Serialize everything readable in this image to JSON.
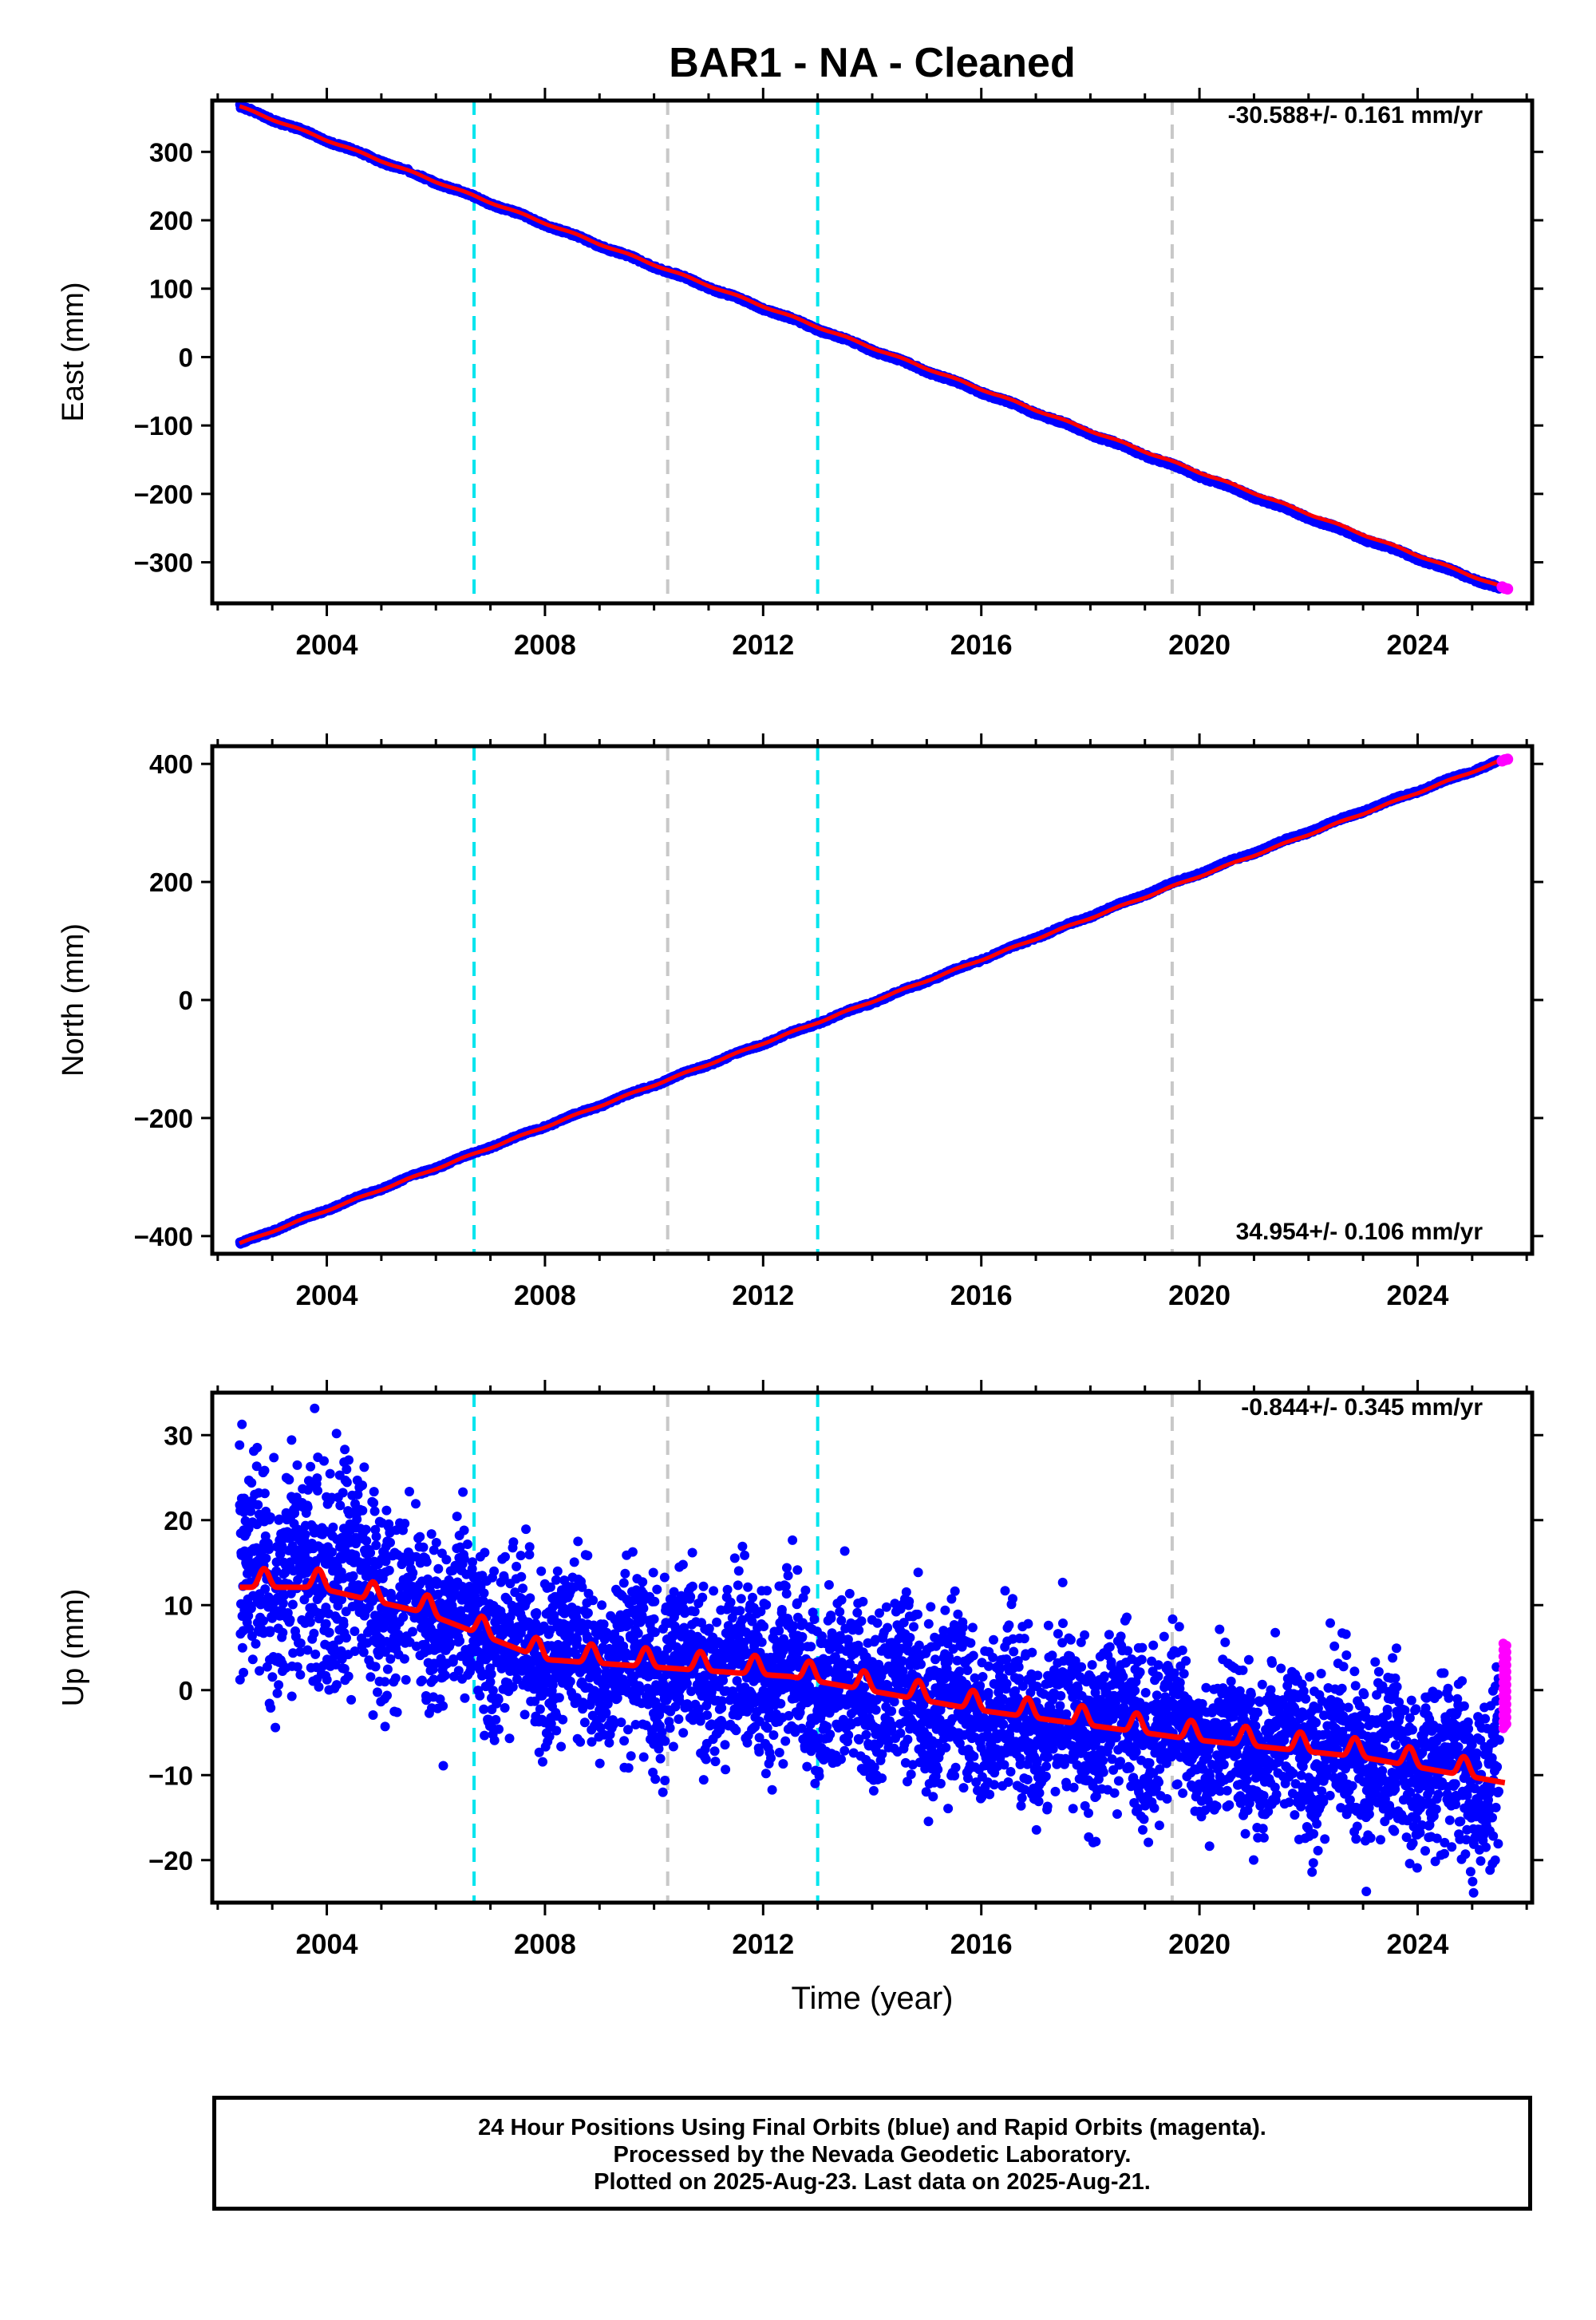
{
  "title": "BAR1  - NA - Cleaned",
  "footer": {
    "line1": "24 Hour Positions Using Final Orbits (blue) and Rapid Orbits (magenta).",
    "line2": "Processed by the Nevada Geodetic Laboratory.",
    "line3": "Plotted on 2025-Aug-23. Last data on 2025-Aug-21."
  },
  "colors": {
    "final_orbits": "#0000ff",
    "rapid_orbits": "#ff00ff",
    "model": "#ff0000",
    "event_cyan": "#00e5ee",
    "event_gray": "#c8c8c8"
  },
  "chart_data": [
    {
      "type": "scatter",
      "ylabel": "East (mm)",
      "rate_text": "-30.588+/- 0.161 mm/yr",
      "xlim": [
        2001.9,
        2026.1
      ],
      "ylim": [
        -360,
        375
      ],
      "xticks": [
        2004,
        2008,
        2012,
        2016,
        2020,
        2024
      ],
      "yticks": [
        -300,
        -200,
        -100,
        0,
        100,
        200,
        300
      ],
      "grid": false,
      "events_cyan": [
        2006.7,
        2013.0
      ],
      "events_gray": [
        2010.25,
        2019.5
      ],
      "series": [
        {
          "color": "blue",
          "x": [
            2002.4,
            2005.4,
            2009.6,
            2014.6,
            2019.3,
            2023.0,
            2025.5
          ],
          "y": [
            366,
            274,
            145,
            -8,
            -152,
            -265,
            -338
          ]
        },
        {
          "color": "magenta",
          "x": [
            2025.55,
            2025.6,
            2025.65
          ],
          "y": [
            -336,
            -338,
            -339
          ]
        },
        {
          "color": "red",
          "x": [
            2002.4,
            2025.6
          ],
          "y": [
            366,
            -338
          ]
        }
      ]
    },
    {
      "type": "scatter",
      "ylabel": "North (mm)",
      "rate_text": "34.954+/- 0.106 mm/yr",
      "xlim": [
        2001.9,
        2026.1
      ],
      "ylim": [
        -430,
        430
      ],
      "xticks": [
        2004,
        2008,
        2012,
        2016,
        2020,
        2024
      ],
      "yticks": [
        -400,
        -200,
        0,
        200,
        400
      ],
      "grid": false,
      "events_cyan": [
        2006.7,
        2013.0
      ],
      "events_gray": [
        2010.25,
        2019.5
      ],
      "series": [
        {
          "color": "blue",
          "x": [
            2002.4,
            2005.4,
            2009.6,
            2014.6,
            2019.3,
            2023.0,
            2025.5
          ],
          "y": [
            -413,
            -305,
            -158,
            17,
            190,
            320,
            405
          ]
        },
        {
          "color": "magenta",
          "x": [
            2025.55,
            2025.6,
            2025.65
          ],
          "y": [
            405,
            407,
            408
          ]
        },
        {
          "color": "red",
          "x": [
            2002.4,
            2025.6
          ],
          "y": [
            -413,
            408
          ]
        }
      ]
    },
    {
      "type": "scatter",
      "ylabel": "Up (mm)",
      "xlabel": "Time (year)",
      "rate_text": "-0.844+/- 0.345 mm/yr",
      "xlim": [
        2001.9,
        2026.1
      ],
      "ylim": [
        -25,
        35
      ],
      "xticks": [
        2004,
        2008,
        2012,
        2016,
        2020,
        2024
      ],
      "yticks": [
        -20,
        -10,
        0,
        10,
        20,
        30
      ],
      "grid": false,
      "events_cyan": [
        2006.7,
        2013.0
      ],
      "events_gray": [
        2010.25,
        2019.5
      ],
      "series": [
        {
          "color": "blue",
          "x": [
            2002.4,
            2003.8,
            2005.8,
            2008.0,
            2012.5,
            2016.0,
            2020.0,
            2023.0,
            2025.5
          ],
          "y": [
            12.5,
            14,
            9,
            4,
            2,
            -2,
            -5.5,
            -7.5,
            -10.5
          ]
        },
        {
          "color": "magenta",
          "x": [
            2025.55,
            2025.55,
            2025.6,
            2025.6,
            2025.65,
            2025.65
          ],
          "y": [
            5,
            3,
            1,
            -1,
            -3,
            -4
          ]
        },
        {
          "color": "red",
          "x": [
            2002.4,
            2003.8,
            2005.8,
            2008.0,
            2012.5,
            2016.0,
            2020.0,
            2023.0,
            2025.6
          ],
          "y": [
            12.5,
            12.5,
            9.5,
            4,
            2,
            -2,
            -5.5,
            -7.5,
            -10.5
          ]
        }
      ]
    }
  ]
}
